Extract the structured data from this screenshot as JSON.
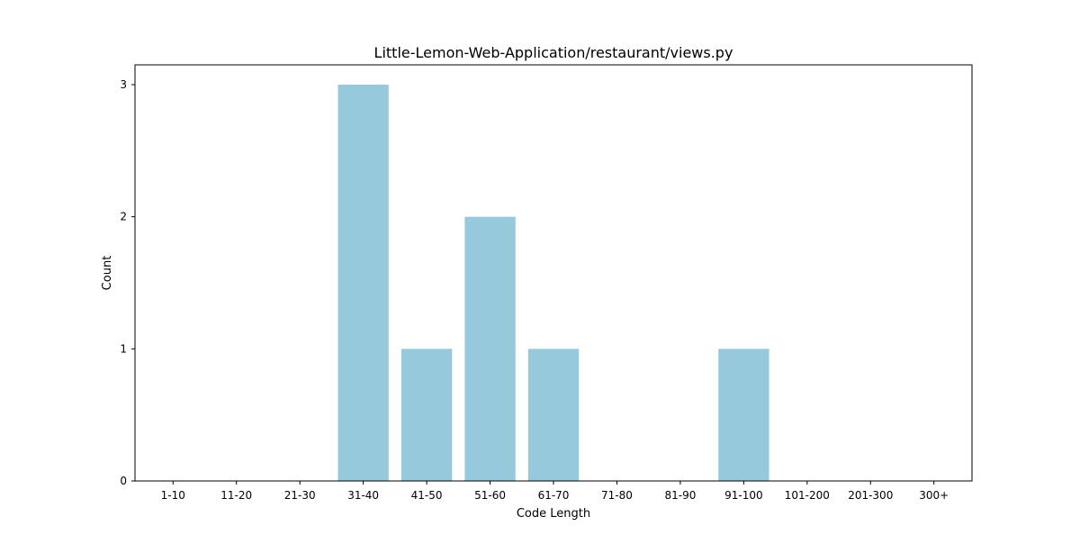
{
  "chart_data": {
    "type": "bar",
    "title": "Little-Lemon-Web-Application/restaurant/views.py",
    "xlabel": "Code Length",
    "ylabel": "Count",
    "categories": [
      "1-10",
      "11-20",
      "21-30",
      "31-40",
      "41-50",
      "51-60",
      "61-70",
      "71-80",
      "81-90",
      "91-100",
      "101-200",
      "201-300",
      "300+"
    ],
    "values": [
      0,
      0,
      0,
      3,
      1,
      2,
      1,
      0,
      0,
      1,
      0,
      0,
      0
    ],
    "ylim": [
      0,
      3.15
    ],
    "yticks": [
      0,
      1,
      2,
      3
    ],
    "grid": false,
    "bar_color": "#96c9dc"
  }
}
